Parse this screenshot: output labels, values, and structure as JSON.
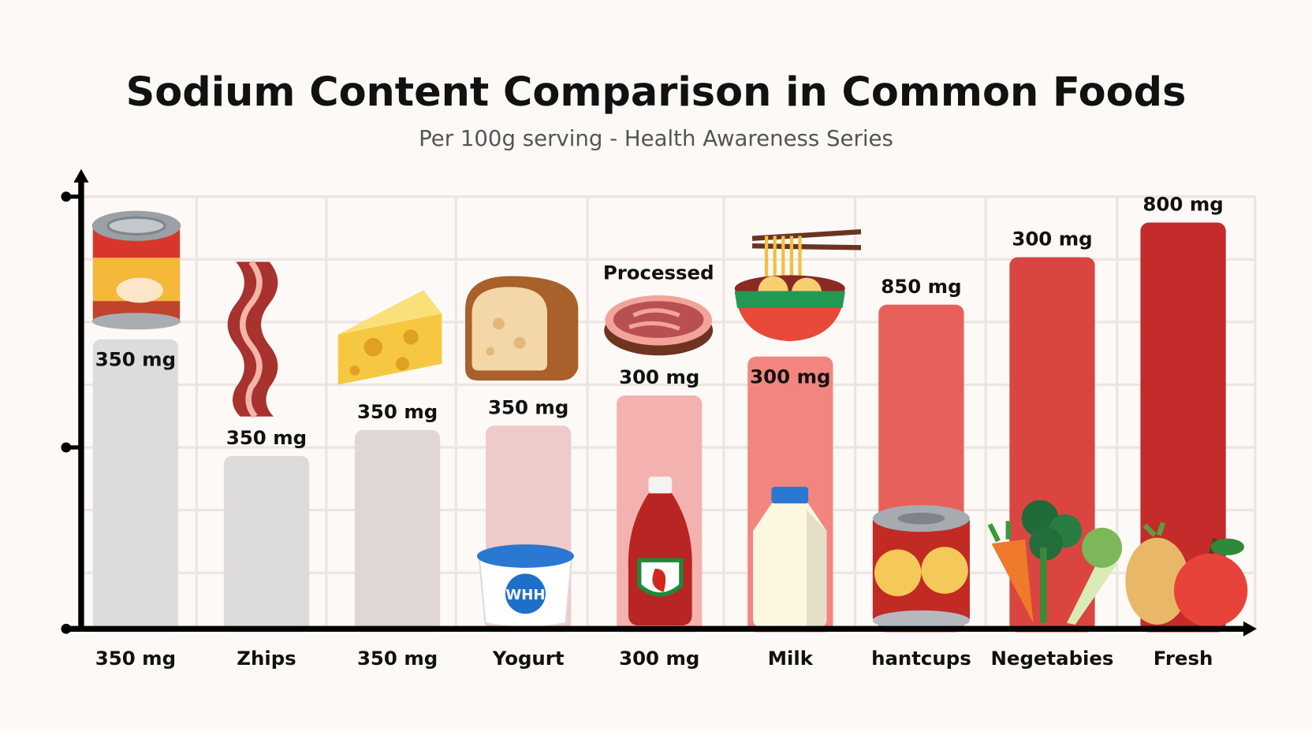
{
  "chart_data": {
    "type": "bar",
    "title": "Sodium Content Comparison in Common Foods",
    "subtitle": "Per 100g serving - Health Awareness Series",
    "xlabel": "",
    "ylabel": "",
    "categories": [
      "350 mg",
      "Zhips",
      "350 mg",
      "Yogurt",
      "300 mg",
      "Milk",
      "hantcups",
      "Negetabies",
      "Fresh"
    ],
    "bar_labels": [
      "350 mg",
      "350 mg",
      "350 mg",
      "350 mg",
      "300 mg",
      "300 mg",
      "850 mg",
      "300 mg",
      "800 mg"
    ],
    "relative_heights": [
      0.67,
      0.4,
      0.46,
      0.47,
      0.54,
      0.63,
      0.75,
      0.86,
      0.94
    ],
    "ylim": [
      0,
      1
    ],
    "grid": true,
    "annotations": [
      {
        "text": "Processed",
        "category_index": 4
      }
    ],
    "colors": [
      "#dcdcdc",
      "#dddada",
      "#e0d6d6",
      "#efcaca",
      "#f3b1b0",
      "#f2867f",
      "#e8605a",
      "#da4541",
      "#c42b2a"
    ],
    "icons": [
      "canned-soup-icon",
      "bacon-icon",
      "cheese-icon",
      "bread-icon",
      "processed-meat-icon",
      "noodle-bowl-icon",
      "yogurt-icon",
      "ketchup-icon",
      "milk-icon",
      "canned-food-icon",
      "vegetables-icon",
      "potato-apple-icon"
    ]
  }
}
